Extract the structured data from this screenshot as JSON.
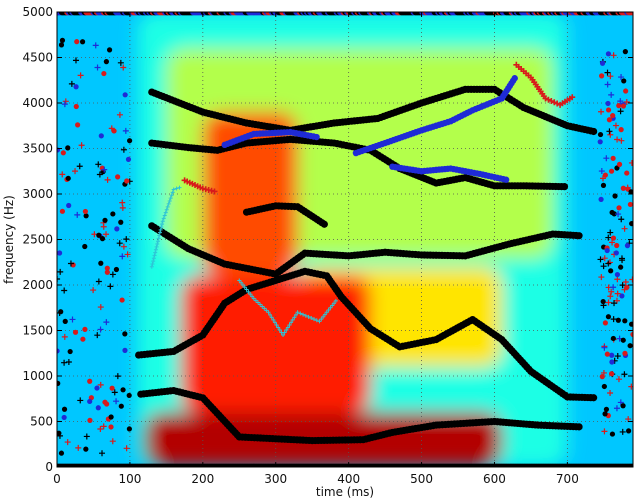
{
  "chart_data": {
    "type": "heatmap",
    "title": "",
    "xlabel": "time (ms)",
    "ylabel": "frequency (Hz)",
    "xlim": [
      0,
      790
    ],
    "ylim": [
      0,
      5000
    ],
    "x_ticks": [
      0,
      100,
      200,
      300,
      400,
      500,
      600,
      700
    ],
    "y_ticks": [
      0,
      500,
      1000,
      1500,
      2000,
      2500,
      3000,
      3500,
      4000,
      4500,
      5000
    ],
    "grid": true,
    "colormap": "jet",
    "marker_colors": {
      "black": "#000000",
      "blue": "#1f2bd6",
      "red": "#d81b1b",
      "cyan": "#2ec4d6"
    },
    "energy_regions": [
      {
        "t": [
          120,
          610
        ],
        "f": [
          0,
          600
        ],
        "level": 0.95
      },
      {
        "t": [
          170,
          430
        ],
        "f": [
          600,
          2100
        ],
        "level": 0.85
      },
      {
        "t": [
          200,
          330
        ],
        "f": [
          2100,
          3900
        ],
        "level": 0.8
      },
      {
        "t": [
          330,
          610
        ],
        "f": [
          1100,
          2200
        ],
        "level": 0.65
      },
      {
        "t": [
          150,
          680
        ],
        "f": [
          2300,
          4600
        ],
        "level": 0.55
      },
      {
        "t": [
          110,
          700
        ],
        "f": [
          0,
          5000
        ],
        "level": 0.4
      }
    ],
    "formant_tracks": [
      {
        "color": "black",
        "points": [
          [
            115,
            800
          ],
          [
            160,
            840
          ],
          [
            200,
            760
          ],
          [
            250,
            330
          ],
          [
            350,
            290
          ],
          [
            420,
            300
          ],
          [
            460,
            380
          ],
          [
            520,
            460
          ],
          [
            600,
            500
          ],
          [
            660,
            460
          ],
          [
            720,
            440
          ]
        ]
      },
      {
        "color": "black",
        "points": [
          [
            112,
            1230
          ],
          [
            160,
            1270
          ],
          [
            200,
            1450
          ],
          [
            230,
            1800
          ],
          [
            260,
            1950
          ],
          [
            300,
            2050
          ],
          [
            340,
            2150
          ],
          [
            370,
            2100
          ],
          [
            390,
            1870
          ],
          [
            430,
            1520
          ],
          [
            470,
            1320
          ],
          [
            520,
            1400
          ],
          [
            570,
            1620
          ],
          [
            610,
            1400
          ],
          [
            650,
            1050
          ],
          [
            700,
            770
          ],
          [
            740,
            760
          ]
        ]
      },
      {
        "color": "black",
        "points": [
          [
            130,
            2650
          ],
          [
            180,
            2400
          ],
          [
            230,
            2230
          ],
          [
            300,
            2120
          ],
          [
            340,
            2350
          ],
          [
            400,
            2320
          ],
          [
            450,
            2360
          ],
          [
            500,
            2330
          ],
          [
            560,
            2320
          ],
          [
            620,
            2450
          ],
          [
            680,
            2560
          ],
          [
            720,
            2540
          ]
        ]
      },
      {
        "color": "black",
        "points": [
          [
            260,
            2800
          ],
          [
            300,
            2870
          ],
          [
            330,
            2860
          ],
          [
            370,
            2650
          ]
        ]
      },
      {
        "color": "black",
        "points": [
          [
            130,
            3560
          ],
          [
            180,
            3510
          ],
          [
            220,
            3480
          ],
          [
            260,
            3560
          ],
          [
            320,
            3600
          ],
          [
            380,
            3560
          ],
          [
            430,
            3480
          ],
          [
            470,
            3280
          ],
          [
            520,
            3120
          ],
          [
            560,
            3180
          ],
          [
            600,
            3090
          ],
          [
            640,
            3090
          ],
          [
            700,
            3080
          ]
        ]
      },
      {
        "color": "black",
        "points": [
          [
            130,
            4120
          ],
          [
            200,
            3900
          ],
          [
            260,
            3780
          ],
          [
            320,
            3700
          ],
          [
            380,
            3780
          ],
          [
            440,
            3830
          ],
          [
            500,
            4000
          ],
          [
            560,
            4150
          ],
          [
            600,
            4150
          ],
          [
            640,
            3950
          ],
          [
            700,
            3750
          ],
          [
            740,
            3680
          ]
        ]
      },
      {
        "color": "blue",
        "points": [
          [
            230,
            3540
          ],
          [
            270,
            3660
          ],
          [
            320,
            3680
          ],
          [
            360,
            3620
          ]
        ]
      },
      {
        "color": "blue",
        "points": [
          [
            460,
            3300
          ],
          [
            500,
            3250
          ],
          [
            540,
            3280
          ],
          [
            580,
            3220
          ],
          [
            620,
            3150
          ]
        ]
      },
      {
        "color": "blue",
        "points": [
          [
            410,
            3450
          ],
          [
            450,
            3560
          ],
          [
            500,
            3700
          ],
          [
            540,
            3800
          ],
          [
            570,
            3920
          ],
          [
            610,
            4050
          ],
          [
            630,
            4300
          ]
        ]
      },
      {
        "color": "red",
        "points": [
          [
            630,
            4420
          ],
          [
            650,
            4280
          ],
          [
            670,
            4050
          ],
          [
            690,
            3980
          ],
          [
            710,
            4080
          ]
        ]
      },
      {
        "color": "red",
        "points": [
          [
            175,
            3150
          ],
          [
            200,
            3060
          ],
          [
            220,
            3020
          ]
        ]
      },
      {
        "color": "cyan",
        "points": [
          [
            250,
            2050
          ],
          [
            270,
            1850
          ],
          [
            290,
            1700
          ],
          [
            310,
            1450
          ],
          [
            330,
            1700
          ],
          [
            360,
            1600
          ],
          [
            385,
            1850
          ]
        ]
      },
      {
        "color": "cyan",
        "points": [
          [
            130,
            2200
          ],
          [
            145,
            2700
          ],
          [
            160,
            3050
          ],
          [
            172,
            3080
          ]
        ]
      }
    ],
    "scatter_regions": [
      {
        "t": [
          0,
          100
        ],
        "f": [
          150,
          4700
        ]
      },
      {
        "t": [
          745,
          790
        ],
        "f": [
          350,
          4600
        ]
      }
    ],
    "edge_marks": {
      "top_at_f": 5000,
      "bottom_at_f": 0
    }
  }
}
